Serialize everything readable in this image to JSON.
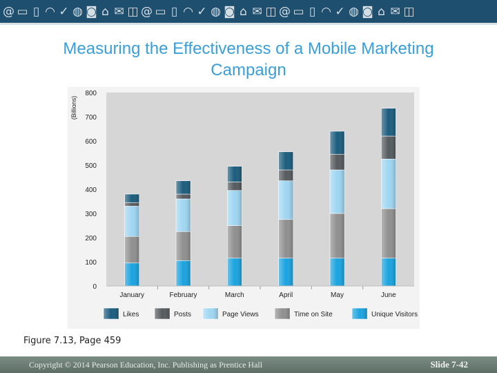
{
  "header": {
    "icons": [
      "at-icon",
      "laptop-icon",
      "phone-icon",
      "wifi-icon",
      "thumbs-up-icon",
      "globe-icon",
      "camera-icon",
      "home-icon",
      "envelope-icon",
      "cart-icon"
    ]
  },
  "title": "Measuring the Effectiveness of a Mobile Marketing Campaign",
  "caption": "Figure 7.13, Page 459",
  "footer": {
    "copyright": "Copyright © 2014 Pearson Education, Inc. Publishing as Prentice Hall",
    "slide": "Slide 7-42"
  },
  "colors": {
    "accent": "#3a9fd8",
    "banner": "#1f4f6e",
    "plot_bg": "#d6d6d6",
    "footer": "#6b7c74"
  },
  "chart_data": {
    "type": "bar",
    "stacked": true,
    "categories": [
      "January",
      "February",
      "March",
      "April",
      "May",
      "June"
    ],
    "ylabel": "(Billions)",
    "ylim": [
      0,
      800
    ],
    "yticks": [
      0,
      100,
      200,
      300,
      400,
      500,
      600,
      700,
      800
    ],
    "legend_position": "bottom",
    "series": [
      {
        "name": "Unique Visitors",
        "color": "#1aa3df",
        "values": [
          95,
          105,
          115,
          115,
          115,
          115
        ]
      },
      {
        "name": "Time on Site",
        "color": "#8f8f8f",
        "values": [
          110,
          120,
          135,
          160,
          185,
          205
        ]
      },
      {
        "name": "Page Views",
        "color": "#9fd6f2",
        "values": [
          125,
          135,
          145,
          160,
          180,
          205
        ]
      },
      {
        "name": "Posts",
        "color": "#555a5e",
        "values": [
          15,
          20,
          35,
          45,
          65,
          95
        ]
      },
      {
        "name": "Likes",
        "color": "#1b5c7d",
        "values": [
          35,
          55,
          65,
          75,
          95,
          115
        ]
      }
    ],
    "legend_order": [
      "Likes",
      "Posts",
      "Page Views",
      "Time on Site",
      "Unique Visitors"
    ]
  }
}
